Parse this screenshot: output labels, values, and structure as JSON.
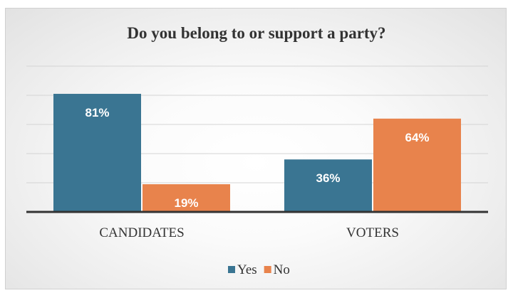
{
  "chart_data": {
    "type": "bar",
    "title": "Do you belong to or support a party?",
    "categories": [
      "CANDIDATES",
      "VOTERS"
    ],
    "series": [
      {
        "name": "Yes",
        "values": [
          81,
          36
        ],
        "labels": [
          "81%",
          "36%"
        ],
        "color": "#3a7592"
      },
      {
        "name": "No",
        "values": [
          19,
          64
        ],
        "labels": [
          "19%",
          "64%"
        ],
        "color": "#e8834c"
      }
    ],
    "ylim": [
      0,
      100
    ],
    "grid": true,
    "legend": "bottom"
  }
}
